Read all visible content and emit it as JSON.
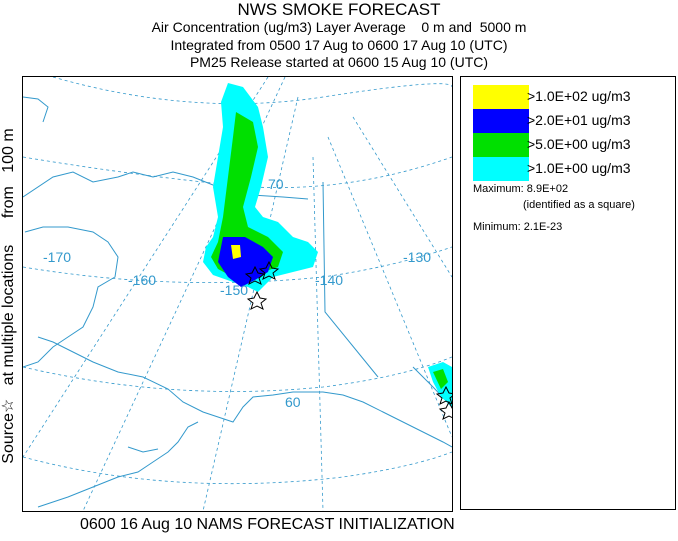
{
  "title": {
    "line1": "NWS SMOKE FORECAST",
    "line2": "Air Concentration (ug/m3) Layer Average    0 m and  5000 m",
    "line3": "Integrated from 0500 17 Aug to 0600 17 Aug 10 (UTC)",
    "line4": "PM25 Release started at 0600 15 Aug 10 (UTC)"
  },
  "side_label": "Source☆   at multiple locations      from   100 m",
  "footer": "0600 16 Aug 10 NAMS FORECAST INITIALIZATION",
  "legend": {
    "items": [
      {
        "label": ">1.0E+02 ug/m3",
        "color": "#ffff00"
      },
      {
        "label": ">2.0E+01 ug/m3",
        "color": "#0000ff"
      },
      {
        "label": ">5.0E+00 ug/m3",
        "color": "#00e000"
      },
      {
        "label": ">1.0E+00 ug/m3",
        "color": "#00ffff"
      }
    ],
    "maximum_label": "Maximum: 8.9E+02",
    "maximum_note": "(identified as a square)",
    "minimum_label": "Minimum: 2.1E-23"
  },
  "map": {
    "graticule_color": "#3399cc",
    "coast_color": "#3399cc",
    "lon_labels": [
      "-170",
      "-160",
      "-150",
      "-140",
      "-130"
    ],
    "lat_labels": [
      "70",
      "60"
    ]
  }
}
